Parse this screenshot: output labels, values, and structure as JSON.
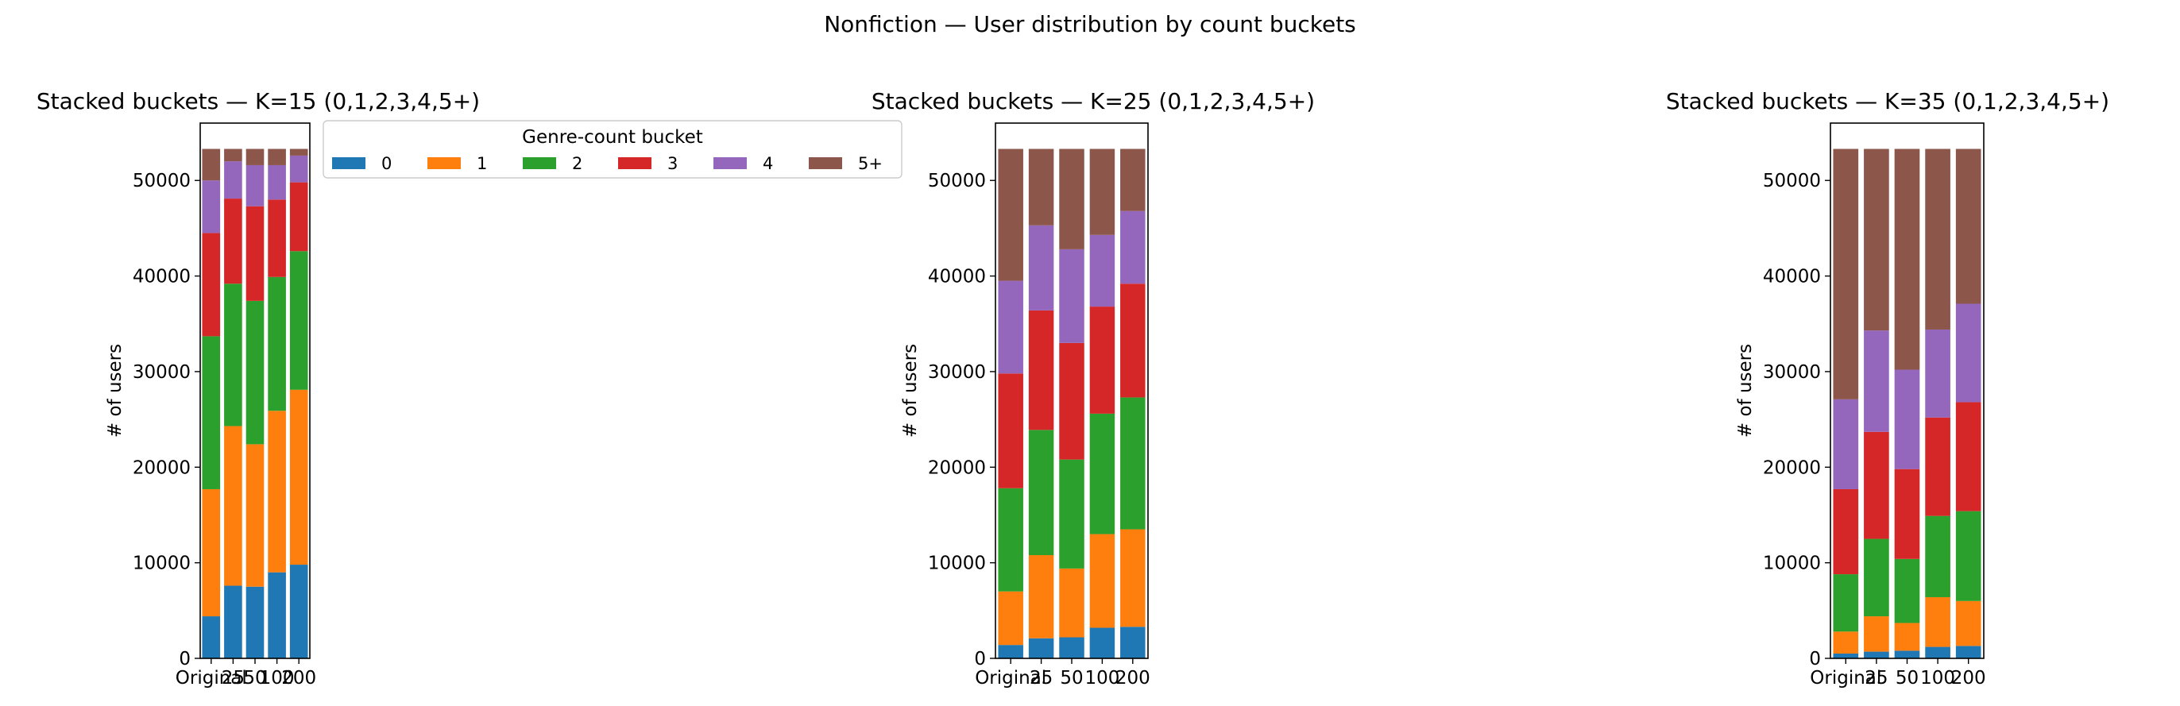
{
  "figure": {
    "suptitle": "Nonfiction — User distribution by count buckets"
  },
  "legend": {
    "title": "Genre-count bucket",
    "placement": "upper right of first panel (outside axes)"
  },
  "colors": {
    "0": "#1f77b4",
    "1": "#ff7f0e",
    "2": "#2ca02c",
    "3": "#d62728",
    "4": "#9467bd",
    "5+": "#8c564b"
  },
  "chart_data": [
    {
      "type": "bar",
      "stacked": true,
      "title": "Stacked buckets — K=15  (0,1,2,3,4,5+)",
      "ylabel": "# of users",
      "ylim": [
        0,
        56000
      ],
      "yticks": [
        0,
        10000,
        20000,
        30000,
        40000,
        50000
      ],
      "categories": [
        "Original",
        "25",
        "50",
        "100",
        "200"
      ],
      "series": [
        {
          "name": "0",
          "values": [
            4400,
            7600,
            7500,
            9000,
            9800
          ]
        },
        {
          "name": "1",
          "values": [
            13300,
            16700,
            14900,
            16900,
            18300
          ]
        },
        {
          "name": "2",
          "values": [
            16000,
            14900,
            15000,
            14000,
            14500
          ]
        },
        {
          "name": "3",
          "values": [
            10800,
            8900,
            9900,
            8100,
            7200
          ]
        },
        {
          "name": "4",
          "values": [
            5500,
            3900,
            4300,
            3600,
            2800
          ]
        },
        {
          "name": "5+",
          "values": [
            3300,
            1300,
            1700,
            1700,
            700
          ]
        }
      ]
    },
    {
      "type": "bar",
      "stacked": true,
      "title": "Stacked buckets — K=25  (0,1,2,3,4,5+)",
      "ylabel": "# of users",
      "ylim": [
        0,
        56000
      ],
      "yticks": [
        0,
        10000,
        20000,
        30000,
        40000,
        50000
      ],
      "categories": [
        "Original",
        "25",
        "50",
        "100",
        "200"
      ],
      "series": [
        {
          "name": "0",
          "values": [
            1400,
            2100,
            2200,
            3200,
            3300
          ]
        },
        {
          "name": "1",
          "values": [
            5600,
            8700,
            7200,
            9800,
            10200
          ]
        },
        {
          "name": "2",
          "values": [
            10800,
            13100,
            11400,
            12600,
            13800
          ]
        },
        {
          "name": "3",
          "values": [
            12000,
            12500,
            12200,
            11200,
            11900
          ]
        },
        {
          "name": "4",
          "values": [
            9700,
            8900,
            9800,
            7500,
            7600
          ]
        },
        {
          "name": "5+",
          "values": [
            13800,
            8000,
            10500,
            9000,
            6500
          ]
        }
      ]
    },
    {
      "type": "bar",
      "stacked": true,
      "title": "Stacked buckets — K=35  (0,1,2,3,4,5+)",
      "ylabel": "# of users",
      "ylim": [
        0,
        56000
      ],
      "yticks": [
        0,
        10000,
        20000,
        30000,
        40000,
        50000
      ],
      "categories": [
        "Original",
        "25",
        "50",
        "100",
        "200"
      ],
      "series": [
        {
          "name": "0",
          "values": [
            500,
            700,
            800,
            1200,
            1300
          ]
        },
        {
          "name": "1",
          "values": [
            2300,
            3700,
            2900,
            5200,
            4700
          ]
        },
        {
          "name": "2",
          "values": [
            6000,
            8100,
            6700,
            8500,
            9400
          ]
        },
        {
          "name": "3",
          "values": [
            8900,
            11200,
            9400,
            10300,
            11400
          ]
        },
        {
          "name": "4",
          "values": [
            9400,
            10600,
            10400,
            9200,
            10300
          ]
        },
        {
          "name": "5+",
          "values": [
            26200,
            19000,
            23100,
            18900,
            16200
          ]
        }
      ]
    }
  ]
}
